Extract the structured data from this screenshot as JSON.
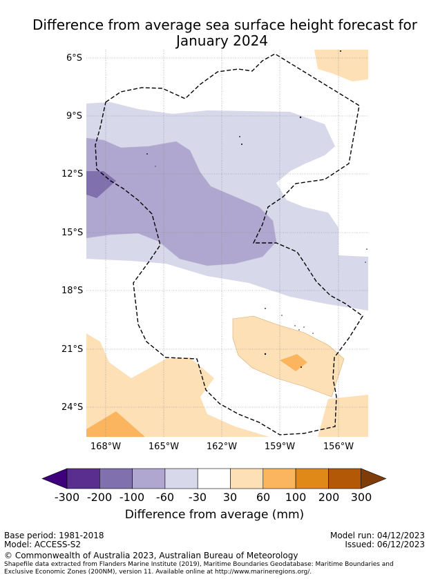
{
  "title_line1": "Difference from average sea surface height forecast for",
  "title_line2": "January 2024",
  "lat_labels": [
    "6°S",
    "9°S",
    "12°S",
    "15°S",
    "18°S",
    "21°S",
    "24°S"
  ],
  "lon_labels": [
    "168°W",
    "165°W",
    "162°W",
    "159°W",
    "156°W"
  ],
  "colorbar": {
    "tick_labels": [
      "-300",
      "-200",
      "-100",
      "-60",
      "-30",
      "30",
      "60",
      "100",
      "200",
      "300"
    ],
    "colors": [
      "#3f007d",
      "#5a2e8e",
      "#8070ad",
      "#afa7d0",
      "#d7d8ea",
      "#ffffff",
      "#fde0b6",
      "#fbb55e",
      "#e08818",
      "#b35806",
      "#7f3b08"
    ],
    "title": "Difference from average (mm)"
  },
  "footer": {
    "base_period": "Base period: 1981-2018",
    "model": "Model: ACCESS-S2",
    "model_run": "Model run: 04/12/2023",
    "issued": "Issued: 06/12/2023",
    "copyright": "© Commonwealth of Australia 2023, Australian Bureau of Meteorology",
    "shapefile": "Shapefile data extracted from Flanders Marine Institute (2019), Maritime Boundaries Geodatabase: Maritime Boundaries and Exclusive Economic Zones (200NM), version 11. Available online at http://www.marineregions.org/."
  }
}
